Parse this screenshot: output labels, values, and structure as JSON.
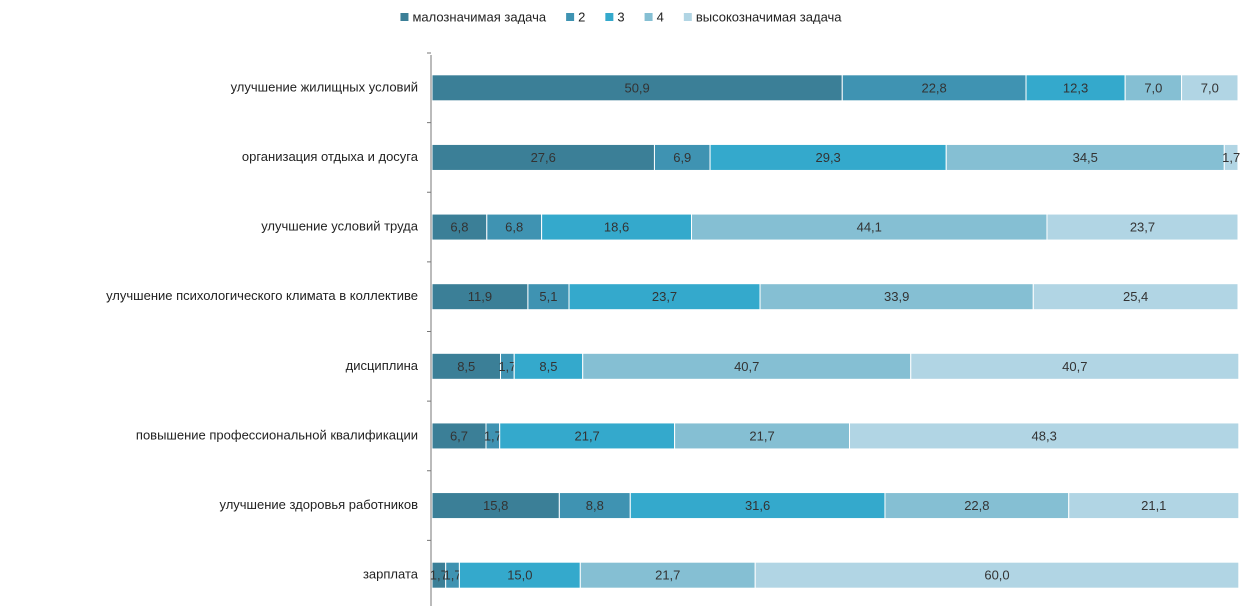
{
  "chart_data": {
    "type": "stacked-bar-horizontal",
    "categories": [
      "улучшение жилищных условий",
      "организация отдыха и досуга",
      "улучшение условий труда",
      "улучшение психологического климата в коллективе",
      "дисциплина",
      "повышение профессиональной квалификации",
      "улучшение здоровья работников",
      "зарплата"
    ],
    "series": [
      {
        "name": "малозначимая задача",
        "color": "#3b7f97",
        "values": [
          50.9,
          27.6,
          6.8,
          11.9,
          8.5,
          6.7,
          15.8,
          1.7
        ],
        "value_labels": [
          "50,9",
          "27,6",
          "6,8",
          "11,9",
          "8,5",
          "6,7",
          "15,8",
          "1,7"
        ]
      },
      {
        "name": "2",
        "color": "#3f93b2",
        "values": [
          22.8,
          6.9,
          6.8,
          5.1,
          1.7,
          1.7,
          8.8,
          1.7
        ],
        "value_labels": [
          "22,8",
          "6,9",
          "6,8",
          "5,1",
          "1,7",
          "1,7",
          "8,8",
          "1,7"
        ]
      },
      {
        "name": "3",
        "color": "#34a9cc",
        "values": [
          12.3,
          29.3,
          18.6,
          23.7,
          8.5,
          21.7,
          31.6,
          15.0
        ],
        "value_labels": [
          "12,3",
          "29,3",
          "18,6",
          "23,7",
          "8,5",
          "21,7",
          "31,6",
          "15,0"
        ]
      },
      {
        "name": "4",
        "color": "#85bfd3",
        "values": [
          7.0,
          34.5,
          44.1,
          33.9,
          40.7,
          21.7,
          22.8,
          21.7
        ],
        "value_labels": [
          "7,0",
          "34,5",
          "44,1",
          "33,9",
          "40,7",
          "21,7",
          "22,8",
          "21,7"
        ]
      },
      {
        "name": "высокозначимая задача",
        "color": "#b1d5e4",
        "values": [
          7.0,
          1.7,
          23.7,
          25.4,
          40.7,
          48.3,
          21.1,
          60.0
        ],
        "value_labels": [
          "7,0",
          "1,7",
          "23,7",
          "25,4",
          "40,7",
          "48,3",
          "21,1",
          "60,0"
        ]
      }
    ],
    "xlim": [
      0,
      100
    ]
  }
}
